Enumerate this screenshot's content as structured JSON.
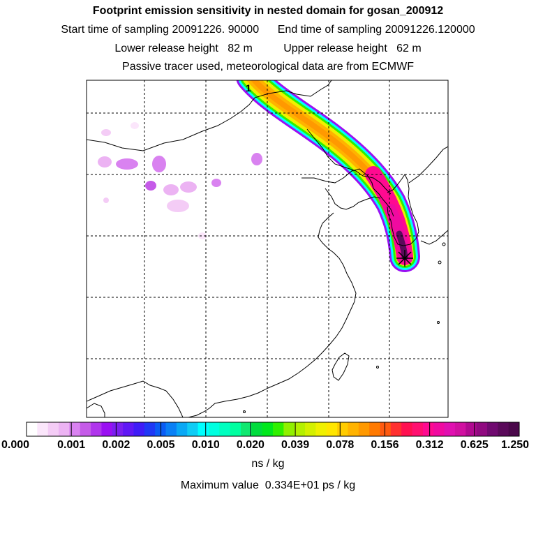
{
  "header": {
    "title": "Footprint emission sensitivity in nested domain for gosan_200912",
    "sampling": "Start time of sampling 20091226. 90000      End time of sampling 20091226.120000",
    "release": "Lower release height   82 m          Upper release height   62 m",
    "tracer": "Passive tracer used, meteorological data are from ECMWF"
  },
  "map": {
    "marker_label": "1",
    "colors": {
      "coast": "#000000",
      "grid": "#000000",
      "receptor": "#000000"
    }
  },
  "colorbar": {
    "tick_labels": [
      "0.000",
      "0.001",
      "0.002",
      "0.005",
      "0.010",
      "0.020",
      "0.039",
      "0.078",
      "0.156",
      "0.312",
      "0.625",
      "1.250"
    ],
    "colors": [
      "#ffffff",
      "#fbe6fb",
      "#f4ccf6",
      "#ecb3f3",
      "#d982f0",
      "#c55be8",
      "#b035ec",
      "#9a10f2",
      "#7b1ff0",
      "#6018f5",
      "#3f1cf7",
      "#1f38f5",
      "#0a5cf5",
      "#0a80f5",
      "#0aa8f5",
      "#10ccf5",
      "#00ffff",
      "#00ffe0",
      "#00ffc0",
      "#00ffa0",
      "#10e870",
      "#00dc3c",
      "#00e81c",
      "#30f000",
      "#90f000",
      "#b4f000",
      "#d4f000",
      "#f0f000",
      "#ffe600",
      "#ffcc00",
      "#ffb300",
      "#ff9900",
      "#ff7a00",
      "#ff5a10",
      "#ff3030",
      "#ff1050",
      "#ff1070",
      "#ff0a90",
      "#f00aa0",
      "#e010b0",
      "#d010a0",
      "#b00a90",
      "#900a80",
      "#700a70",
      "#5a0a5a",
      "#4a084a"
    ],
    "units": "ns / kg"
  },
  "footer": {
    "max_value": "Maximum value  0.334E+01 ps / kg"
  }
}
